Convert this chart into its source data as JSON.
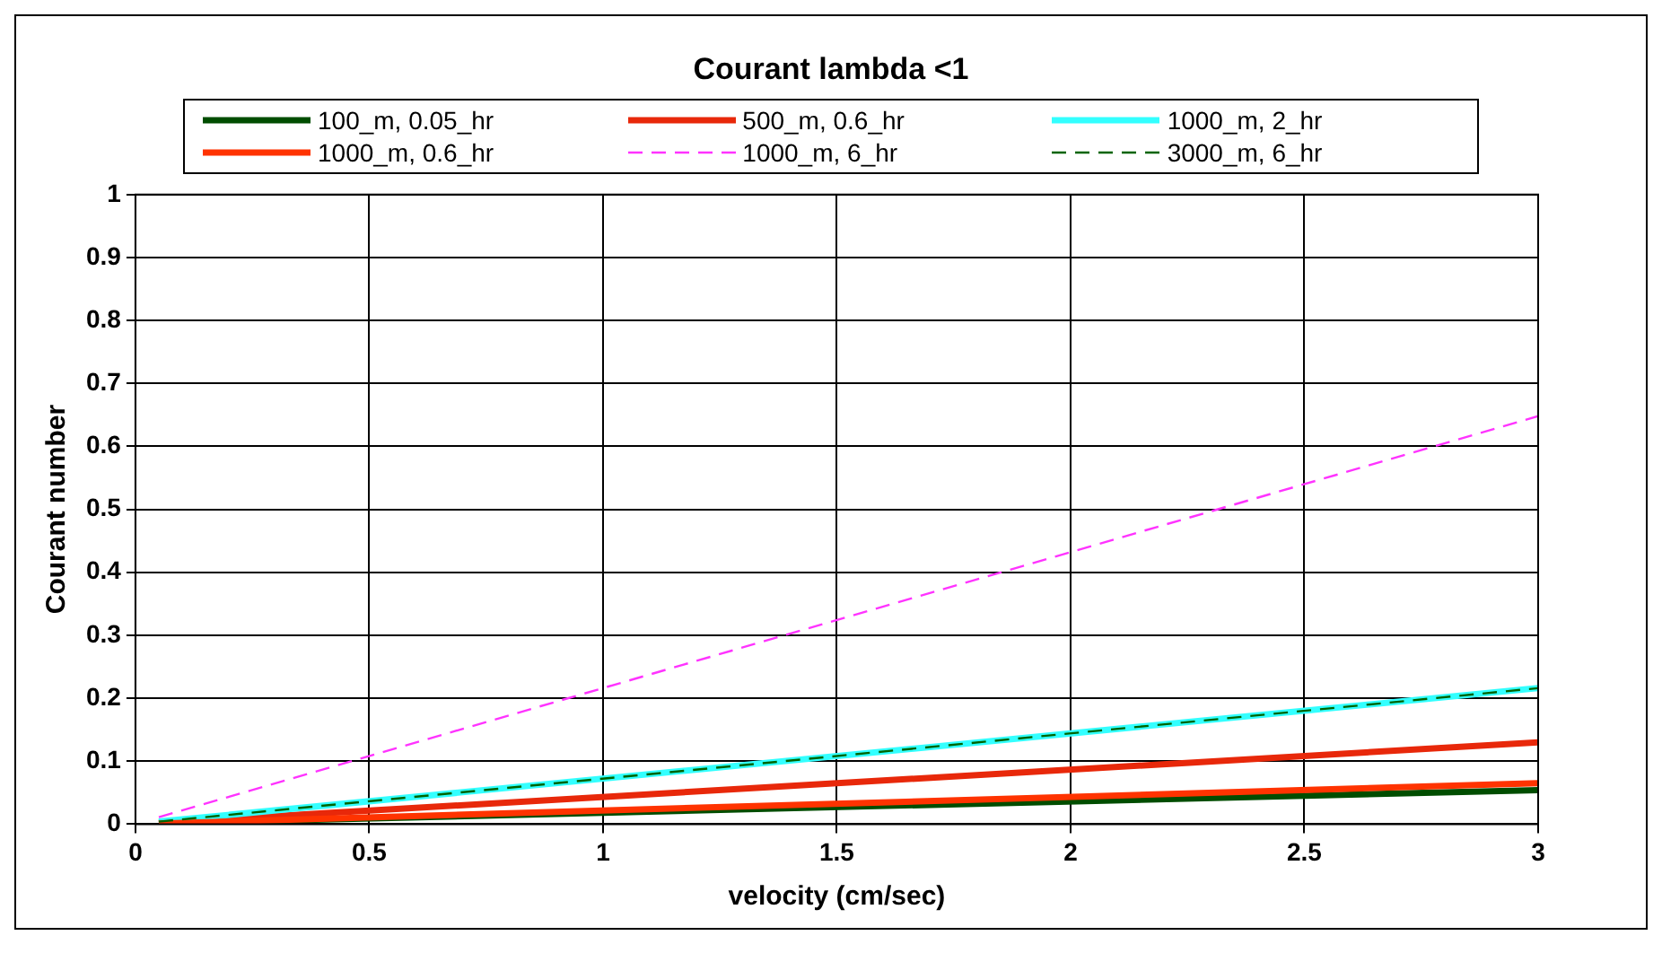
{
  "chart_data": {
    "type": "line",
    "title": "Courant lambda <1",
    "xlabel": "velocity (cm/sec)",
    "ylabel": "Courant number",
    "xlim": [
      0,
      3
    ],
    "xticks": [
      0,
      0.5,
      1,
      1.5,
      2,
      2.5,
      3
    ],
    "ylim": [
      0,
      1
    ],
    "yticks": [
      0,
      0.1,
      0.2,
      0.3,
      0.4,
      0.5,
      0.6,
      0.7,
      0.8,
      0.9,
      1
    ],
    "grid": true,
    "x": [
      0.05,
      3
    ],
    "legend": "top",
    "marker": "none",
    "series": [
      {
        "name": "100_m, 0.05_hr",
        "color": "#004d00",
        "values": [
          0.001,
          0.054
        ],
        "line_style": "solid"
      },
      {
        "name": "500_m, 0.6_hr",
        "color": "#e8280a",
        "values": [
          0.002,
          0.13
        ],
        "line_style": "solid"
      },
      {
        "name": "1000_m, 2_hr",
        "color": "#33ffff",
        "values": [
          0.004,
          0.216
        ],
        "line_style": "solid"
      },
      {
        "name": "1000_m, 0.6_hr",
        "color": "#ff3300",
        "values": [
          0.001,
          0.065
        ],
        "line_style": "solid"
      },
      {
        "name": "1000_m, 6_hr",
        "color": "#ff33ff",
        "values": [
          0.011,
          0.648
        ],
        "line_style": "dashed"
      },
      {
        "name": "3000_m, 6_hr",
        "color": "#006400",
        "values": [
          0.004,
          0.216
        ],
        "line_style": "dashed"
      }
    ]
  }
}
